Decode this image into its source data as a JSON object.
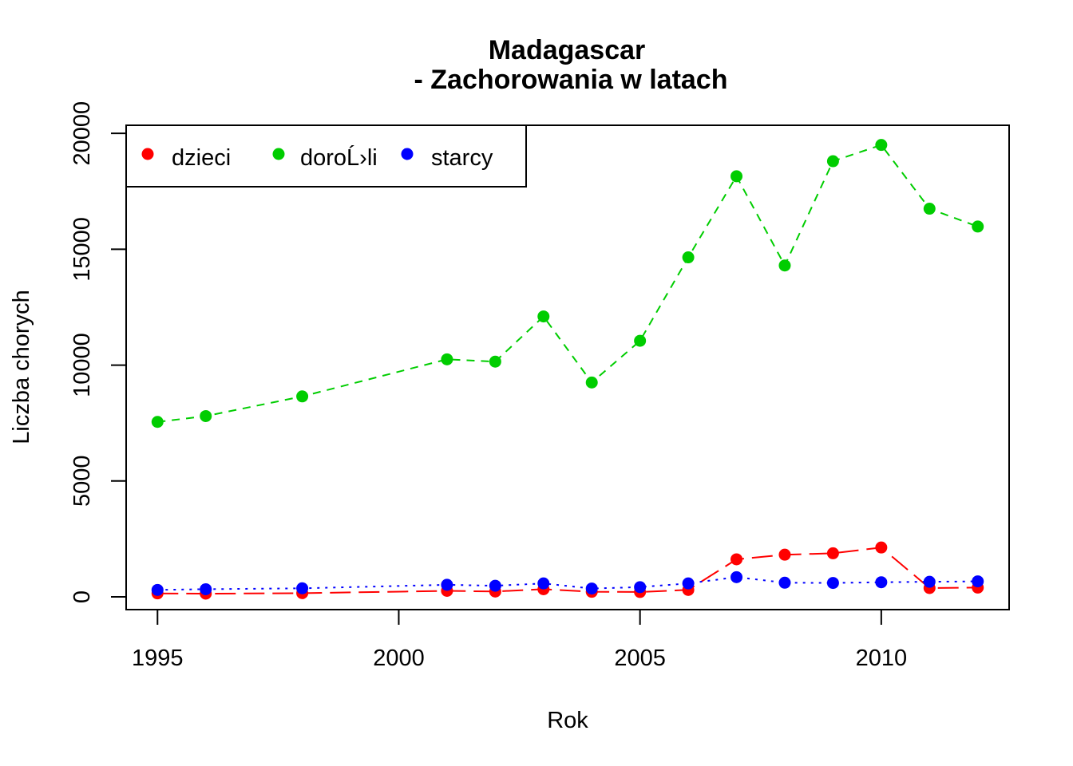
{
  "chart_data": {
    "type": "line",
    "title_line1": "Madagascar",
    "title_line2": "- Zachorowania w latach",
    "xlabel": "Rok",
    "ylabel": "Liczba chorych",
    "xlim": [
      1994.35,
      2012.65
    ],
    "ylim": [
      -550,
      20350
    ],
    "x_ticks": [
      1995,
      2000,
      2005,
      2010
    ],
    "y_ticks": [
      0,
      5000,
      10000,
      15000,
      20000
    ],
    "legend_position": "top-left",
    "grid": false,
    "series": [
      {
        "name": "dzieci",
        "color": "#FF0000",
        "line_style": "longdash",
        "points": [
          [
            1995,
            150
          ],
          [
            1996,
            140
          ],
          [
            1998,
            160
          ],
          [
            2001,
            260
          ],
          [
            2002,
            230
          ],
          [
            2003,
            330
          ],
          [
            2004,
            220
          ],
          [
            2005,
            210
          ],
          [
            2006,
            300
          ],
          [
            2007,
            1620
          ],
          [
            2008,
            1820
          ],
          [
            2009,
            1880
          ],
          [
            2010,
            2130
          ],
          [
            2011,
            380
          ],
          [
            2012,
            400
          ]
        ]
      },
      {
        "name": "doroĹ›li",
        "color": "#00CD00",
        "line_style": "dashed",
        "points": [
          [
            1995,
            7550
          ],
          [
            1996,
            7800
          ],
          [
            1998,
            8650
          ],
          [
            2001,
            10250
          ],
          [
            2002,
            10150
          ],
          [
            2003,
            12100
          ],
          [
            2004,
            9250
          ],
          [
            2005,
            11050
          ],
          [
            2006,
            14650
          ],
          [
            2007,
            18150
          ],
          [
            2008,
            14300
          ],
          [
            2009,
            18800
          ],
          [
            2010,
            19500
          ],
          [
            2011,
            16750
          ],
          [
            2012,
            15980
          ]
        ]
      },
      {
        "name": "starcy",
        "color": "#0000FF",
        "line_style": "dotted",
        "points": [
          [
            1995,
            300
          ],
          [
            1996,
            330
          ],
          [
            1998,
            370
          ],
          [
            2001,
            520
          ],
          [
            2002,
            480
          ],
          [
            2003,
            580
          ],
          [
            2004,
            360
          ],
          [
            2005,
            420
          ],
          [
            2006,
            580
          ],
          [
            2007,
            850
          ],
          [
            2008,
            610
          ],
          [
            2009,
            600
          ],
          [
            2010,
            630
          ],
          [
            2011,
            650
          ],
          [
            2012,
            670
          ]
        ]
      }
    ]
  }
}
